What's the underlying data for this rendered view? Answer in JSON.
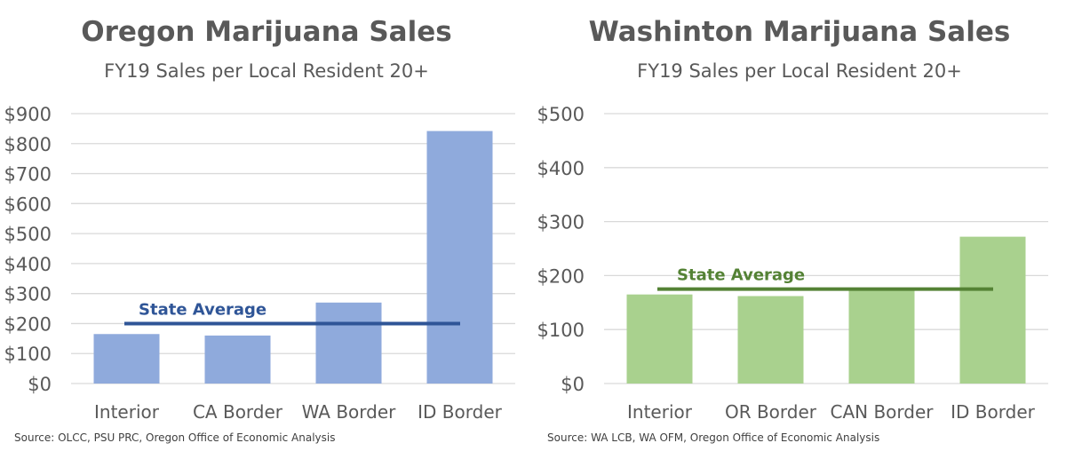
{
  "chart_data": [
    {
      "type": "bar",
      "title": "Oregon Marijuana Sales",
      "subtitle": "FY19 Sales per Local Resident 20+",
      "categories": [
        "Interior",
        "CA Border",
        "WA Border",
        "ID Border"
      ],
      "values": [
        165,
        160,
        270,
        842
      ],
      "reference_line": {
        "label": "State Average",
        "value": 200
      },
      "ylim": [
        0,
        900
      ],
      "yticks": [
        0,
        100,
        200,
        300,
        400,
        500,
        600,
        700,
        800,
        900
      ],
      "ytick_labels": [
        "$0",
        "$100",
        "$200",
        "$300",
        "$400",
        "$500",
        "$600",
        "$700",
        "$800",
        "$900"
      ],
      "grid": true,
      "bar_color": "#8faadc",
      "line_color": "#2f5597",
      "label_color": "#2f5597",
      "source": "Source: OLCC, PSU PRC, Oregon Office of Economic Analysis"
    },
    {
      "type": "bar",
      "title": "Washinton Marijuana Sales",
      "subtitle": "FY19 Sales per Local Resident 20+",
      "categories": [
        "Interior",
        "OR Border",
        "CAN Border",
        "ID Border"
      ],
      "values": [
        165,
        162,
        172,
        272
      ],
      "reference_line": {
        "label": "State Average",
        "value": 175
      },
      "ylim": [
        0,
        500
      ],
      "yticks": [
        0,
        100,
        200,
        300,
        400,
        500
      ],
      "ytick_labels": [
        "$0",
        "$100",
        "$200",
        "$300",
        "$400",
        "$500"
      ],
      "grid": true,
      "bar_color": "#a9d18e",
      "line_color": "#548235",
      "label_color": "#548235",
      "source": "Source: WA LCB, WA OFM, Oregon Office of Economic Analysis"
    }
  ]
}
